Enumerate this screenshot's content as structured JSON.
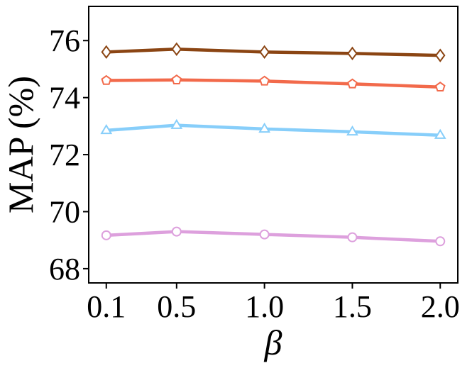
{
  "chart_data": {
    "type": "line",
    "xlabel": "β",
    "ylabel": "MAP (%)",
    "categories": [
      "0.1",
      "0.5",
      "1.0",
      "1.5",
      "2.0"
    ],
    "x": [
      0.1,
      0.5,
      1.0,
      1.5,
      2.0
    ],
    "ylim": [
      67.5,
      77.2
    ],
    "yticks": [
      68,
      70,
      72,
      74,
      76
    ],
    "grid": false,
    "legend": "none",
    "series": [
      {
        "values": [
          75.6,
          75.7,
          75.6,
          75.55,
          75.48
        ],
        "color": "#8B4513",
        "marker": "diamond"
      },
      {
        "values": [
          74.6,
          74.62,
          74.58,
          74.48,
          74.37
        ],
        "color": "#F26A4B",
        "marker": "pentagon"
      },
      {
        "values": [
          72.85,
          73.03,
          72.9,
          72.8,
          72.68
        ],
        "color": "#87CEFA",
        "marker": "triangle"
      },
      {
        "values": [
          69.17,
          69.3,
          69.2,
          69.1,
          68.96
        ],
        "color": "#DDA0DD",
        "marker": "circle"
      }
    ]
  }
}
